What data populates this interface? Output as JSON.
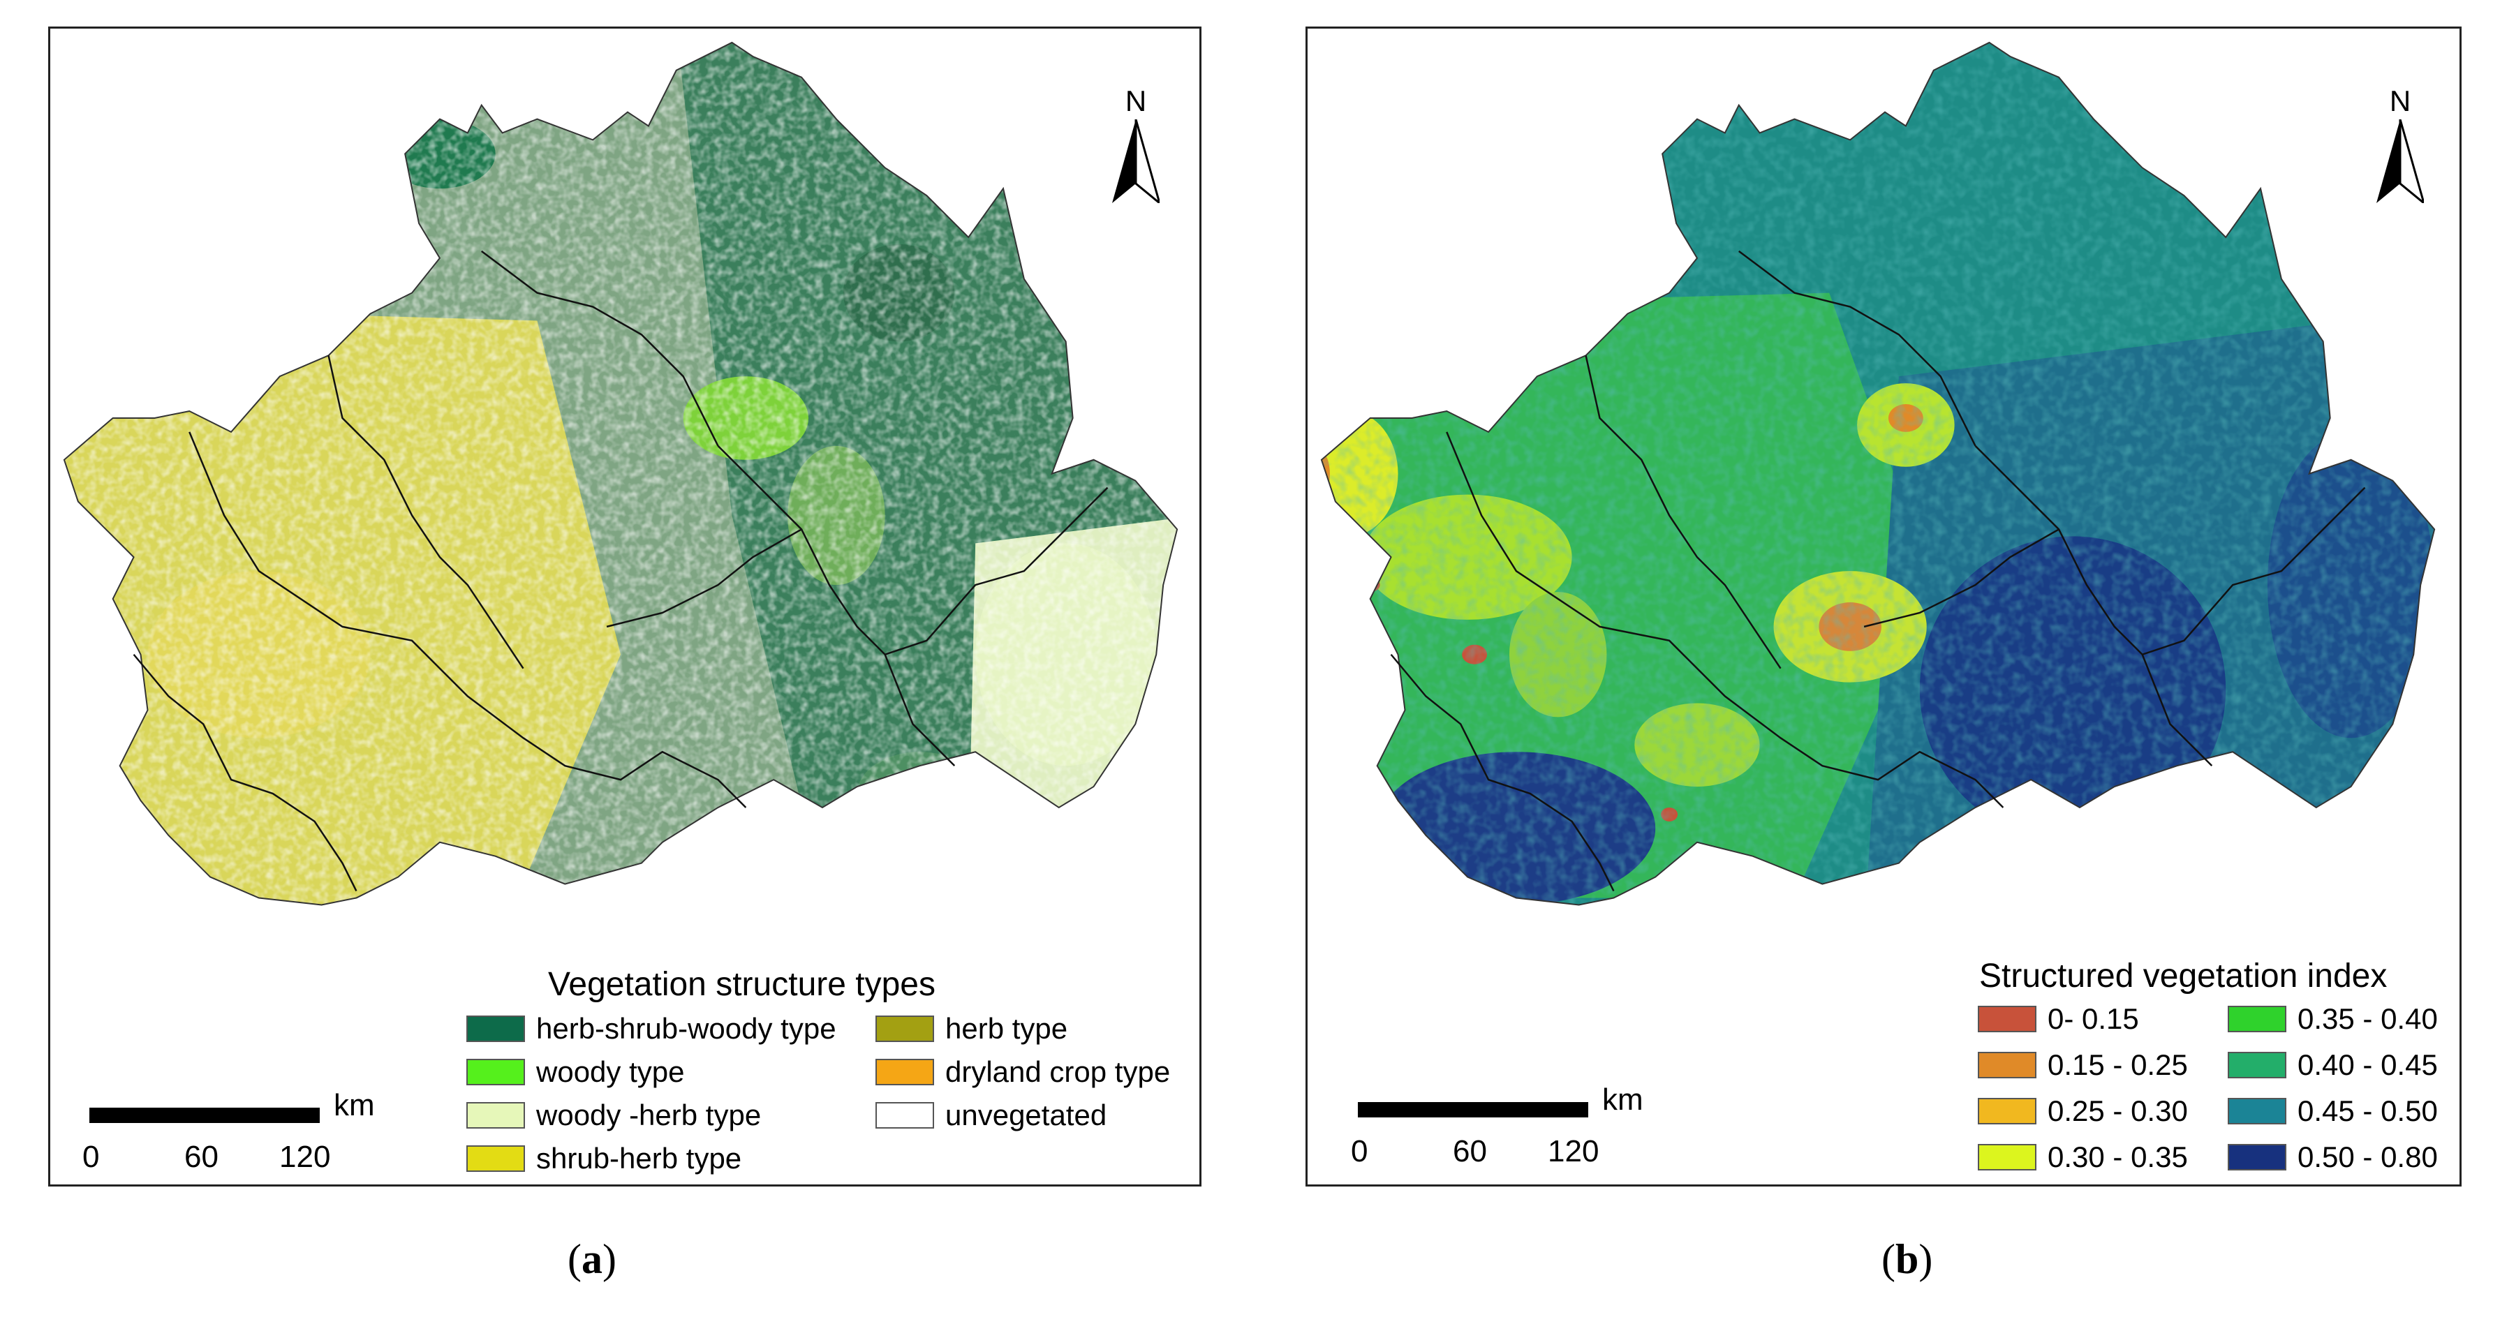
{
  "panels": {
    "a": {
      "sublabel": {
        "open": "(",
        "letter": "a",
        "close": ")"
      },
      "north": "N",
      "scale": {
        "unit": "km",
        "ticks": [
          "0",
          "60",
          "120"
        ]
      },
      "legend": {
        "title": "Vegetation structure types",
        "items": [
          {
            "label": "herb-shrub-woody type",
            "color": "#0d6b4a"
          },
          {
            "label": "herb type",
            "color": "#a3a012"
          },
          {
            "label": "woody type",
            "color": "#55f01c"
          },
          {
            "label": "dryland crop type",
            "color": "#f5a615"
          },
          {
            "label": "woody -herb type",
            "color": "#e6f7b9"
          },
          {
            "label": "unvegetated",
            "color": "#ffffff"
          },
          {
            "label": "shrub-herb type",
            "color": "#e3dc14"
          }
        ]
      }
    },
    "b": {
      "sublabel": {
        "open": "(",
        "letter": "b",
        "close": ")"
      },
      "north": "N",
      "scale": {
        "unit": "km",
        "ticks": [
          "0",
          "60",
          "120"
        ]
      },
      "legend": {
        "title": "Structured vegetation index",
        "items": [
          {
            "label": "0- 0.15",
            "color": "#c8523a"
          },
          {
            "label": "0.35 - 0.40",
            "color": "#2fd22c"
          },
          {
            "label": "0.15 - 0.25",
            "color": "#e08a28"
          },
          {
            "label": "0.40 - 0.45",
            "color": "#23ae6a"
          },
          {
            "label": "0.25 - 0.30",
            "color": "#f1b81f"
          },
          {
            "label": "0.45 - 0.50",
            "color": "#1b8496"
          },
          {
            "label": "0.30 - 0.35",
            "color": "#dcf51e"
          },
          {
            "label": "0.50 - 0.80",
            "color": "#17317e"
          }
        ]
      }
    }
  }
}
